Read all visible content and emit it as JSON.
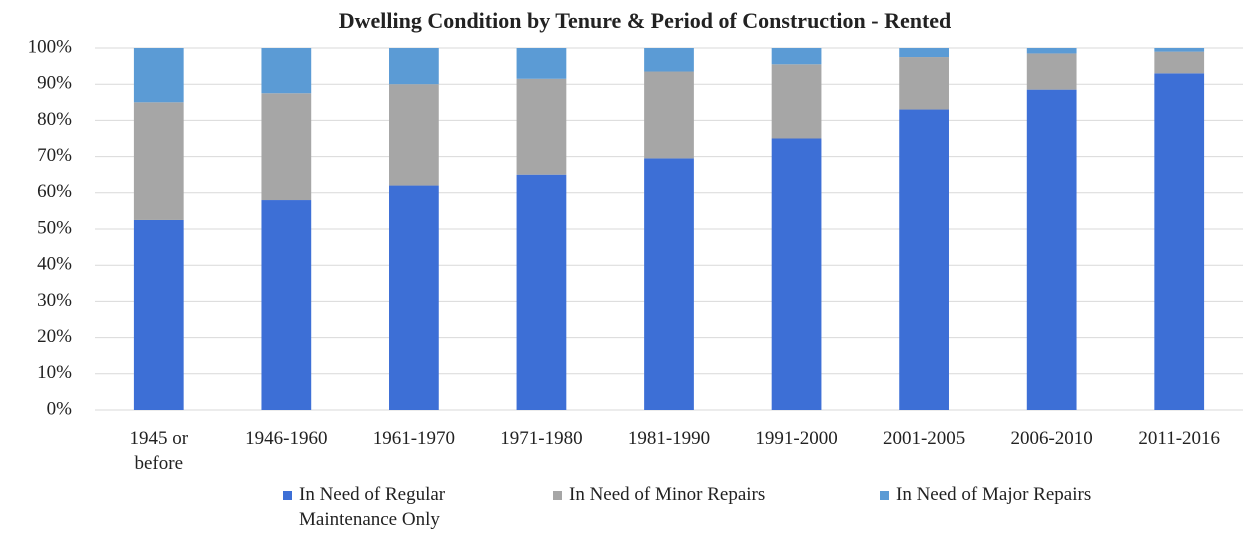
{
  "chart_data": {
    "type": "stacked_bar",
    "title": "Dwelling Condition by Tenure & Period of Construction - Rented",
    "categories": [
      "1945 or before",
      "1946-1960",
      "1961-1970",
      "1971-1980",
      "1981-1990",
      "1991-2000",
      "2001-2005",
      "2006-2010",
      "2011-2016"
    ],
    "series": [
      {
        "name": "In Need of Regular Maintenance Only",
        "color": "#3d6fd6",
        "values": [
          52.5,
          58,
          62,
          65,
          69.5,
          75,
          83,
          88.5,
          93
        ]
      },
      {
        "name": "In Need of Minor Repairs",
        "color": "#a6a6a6",
        "values": [
          32.5,
          29.5,
          28,
          26.5,
          24,
          20.5,
          14.5,
          10,
          6
        ]
      },
      {
        "name": "In Need of Major Repairs",
        "color": "#5b9bd5",
        "values": [
          15,
          12.5,
          10,
          8.5,
          6.5,
          4.5,
          2.5,
          1.5,
          1
        ]
      }
    ],
    "ylim": [
      0,
      100
    ],
    "yticks": [
      {
        "value": 0,
        "label": "0%"
      },
      {
        "value": 10,
        "label": "10%"
      },
      {
        "value": 20,
        "label": "20%"
      },
      {
        "value": 30,
        "label": "30%"
      },
      {
        "value": 40,
        "label": "40%"
      },
      {
        "value": 50,
        "label": "50%"
      },
      {
        "value": 60,
        "label": "60%"
      },
      {
        "value": 70,
        "label": "70%"
      },
      {
        "value": 80,
        "label": "80%"
      },
      {
        "value": 90,
        "label": "90%"
      },
      {
        "value": 100,
        "label": "100%"
      }
    ],
    "grid": true,
    "legend": "bottom"
  }
}
